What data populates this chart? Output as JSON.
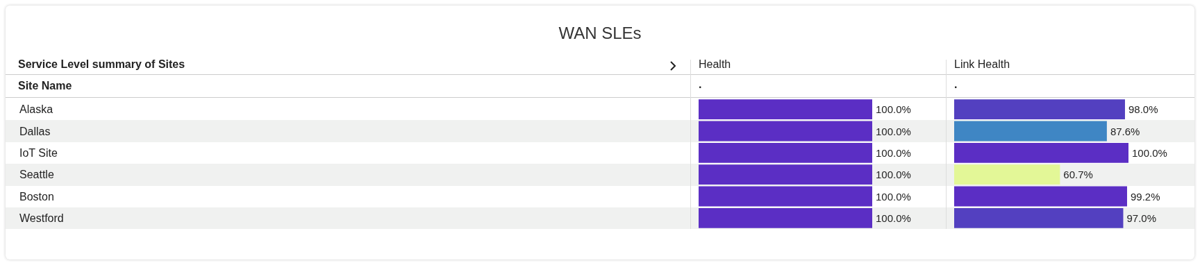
{
  "chart_data": [
    {
      "type": "bar",
      "orientation": "horizontal",
      "title": "WAN SLEs",
      "subtitle": "Service Level summary of Sites",
      "ylabel": "Site Name",
      "xlabel": "Health",
      "annotations": [
        "."
      ],
      "tick_labels": "y",
      "categories": [
        "Alaska",
        "Dallas",
        "IoT Site",
        "Seattle",
        "Boston",
        "Westford"
      ],
      "values": [
        100.0,
        100.0,
        100.0,
        100.0,
        100.0,
        100.0
      ],
      "colors": [
        "#5b2ec4",
        "#5b2ec4",
        "#5b2ec4",
        "#5b2ec4",
        "#5b2ec4",
        "#5b2ec4"
      ],
      "value_labels": [
        "100.0%",
        "100.0%",
        "100.0%",
        "100.0%",
        "100.0%",
        "100.0%"
      ]
    },
    {
      "type": "bar",
      "orientation": "horizontal",
      "xlabel": "Link Health",
      "annotations": [
        "."
      ],
      "tick_labels": false,
      "categories": [
        null,
        null,
        null,
        null,
        null,
        null
      ],
      "values": [
        98.0,
        87.6,
        100.0,
        60.7,
        99.2,
        97.0
      ],
      "colors": [
        "#5340c0",
        "#3f86c4",
        "#5b2ec4",
        "#e3f797",
        "#5b2ec4",
        "#5340c0"
      ],
      "value_labels": [
        "98.0%",
        "87.6%",
        "100.0%",
        "60.7%",
        "99.2%",
        "97.0%"
      ]
    }
  ]
}
